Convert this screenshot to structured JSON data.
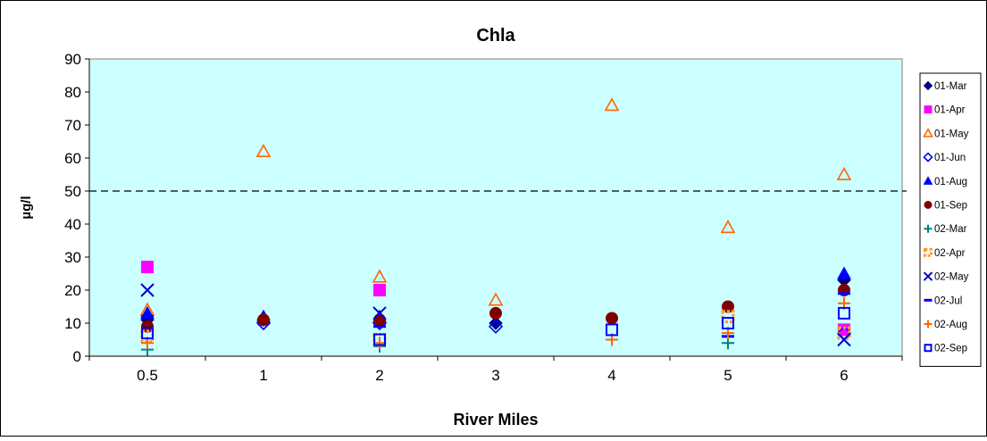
{
  "chart_data": {
    "type": "scatter",
    "title": "Chla",
    "xlabel": "River Miles",
    "ylabel": "µg/l",
    "categories": [
      "0.5",
      "1",
      "2",
      "3",
      "4",
      "5",
      "6"
    ],
    "ylim": [
      0,
      90
    ],
    "yticks": [
      0,
      10,
      20,
      30,
      40,
      50,
      60,
      70,
      80,
      90
    ],
    "grid": false,
    "legend_position": "right",
    "plot_background": "#ccffff",
    "reference_line": {
      "y": 50,
      "style": "dashed"
    },
    "series": [
      {
        "name": "01-Mar",
        "marker": "diamond-filled",
        "color": "#000080",
        "values": [
          11,
          11,
          null,
          10,
          null,
          null,
          23
        ]
      },
      {
        "name": "01-Apr",
        "marker": "square-filled",
        "color": "#ff00ff",
        "values": [
          27,
          null,
          20,
          null,
          null,
          null,
          8
        ]
      },
      {
        "name": "01-May",
        "marker": "triangle-open",
        "color": "#ff6600",
        "values": [
          14,
          62,
          24,
          17,
          76,
          39,
          55
        ]
      },
      {
        "name": "01-Jun",
        "marker": "diamond-open",
        "color": "#0000ff",
        "values": [
          null,
          10,
          10,
          9,
          null,
          null,
          7
        ]
      },
      {
        "name": "01-Aug",
        "marker": "triangle-filled",
        "color": "#0000ff",
        "values": [
          13,
          12,
          12,
          null,
          null,
          null,
          25
        ]
      },
      {
        "name": "01-Sep",
        "marker": "circle-filled",
        "color": "#800000",
        "values": [
          9,
          11,
          11,
          13,
          11.5,
          15,
          20
        ]
      },
      {
        "name": "02-Mar",
        "marker": "plus",
        "color": "#008080",
        "values": [
          2,
          null,
          3,
          null,
          null,
          4,
          null
        ]
      },
      {
        "name": "02-Apr",
        "marker": "square-dotted",
        "color": "#ff9933",
        "values": [
          6,
          null,
          5,
          null,
          null,
          12,
          7
        ]
      },
      {
        "name": "02-May",
        "marker": "x",
        "color": "#0000cc",
        "values": [
          20,
          null,
          13,
          null,
          null,
          null,
          5
        ]
      },
      {
        "name": "02-Jul",
        "marker": "dash",
        "color": "#0000ff",
        "values": [
          12,
          null,
          9,
          null,
          null,
          6,
          19
        ]
      },
      {
        "name": "02-Aug",
        "marker": "plus",
        "color": "#ff6600",
        "values": [
          4,
          null,
          4,
          null,
          5,
          7,
          16
        ]
      },
      {
        "name": "02-Sep",
        "marker": "square-open",
        "color": "#0000ff",
        "values": [
          7,
          null,
          5,
          null,
          8,
          10,
          13
        ]
      }
    ]
  }
}
